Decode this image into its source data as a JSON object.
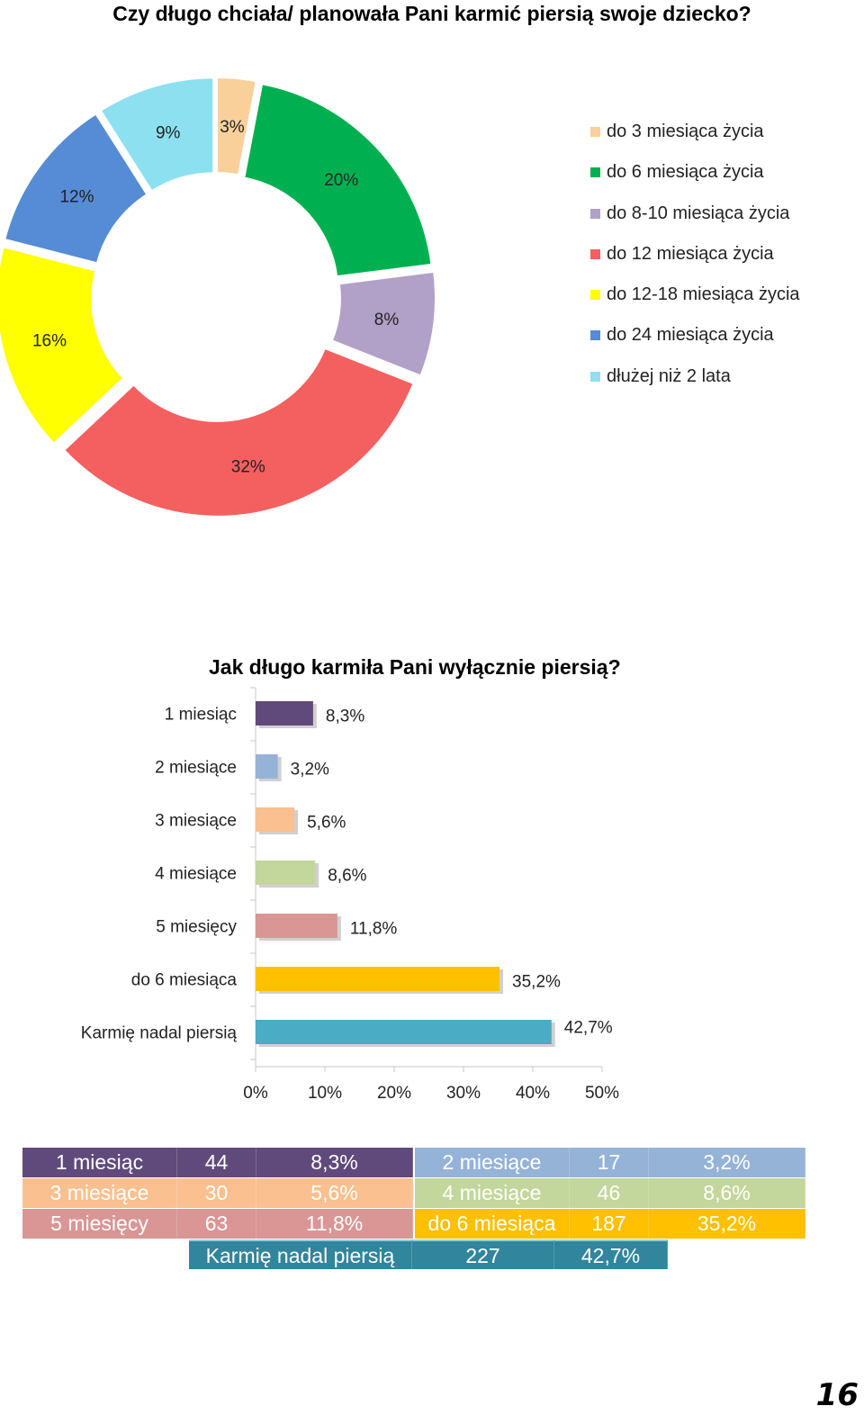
{
  "chart_data": [
    {
      "type": "pie",
      "title": "Czy długo chciała/ planowała Pani karmić piersią swoje dziecko?",
      "legend_position": "right",
      "slices": [
        {
          "label": "do 3 miesiąca życia",
          "value": 3,
          "display": "3%",
          "color": "#FAD09A"
        },
        {
          "label": "do 6 miesiąca życia",
          "value": 20,
          "display": "20%",
          "color": "#00B050"
        },
        {
          "label": "do 8-10 miesiąca życia",
          "value": 8,
          "display": "8%",
          "color": "#B1A0C7"
        },
        {
          "label": "do 12 miesiąca życia",
          "value": 32,
          "display": "32%",
          "color": "#F4605F"
        },
        {
          "label": "do 12-18 miesiąca życia",
          "value": 16,
          "display": "16%",
          "color": "#FFFF00"
        },
        {
          "label": "do 24 miesiąca życia",
          "value": 12,
          "display": "12%",
          "color": "#568BD5"
        },
        {
          "label": "dłużej niż 2 lata",
          "value": 9,
          "display": "9%",
          "color": "#8CE0F0"
        }
      ]
    },
    {
      "type": "bar",
      "orientation": "horizontal",
      "title": "Jak długo karmiła Pani wyłącznie piersią?",
      "categories": [
        "1 miesiąc",
        "2 miesiące",
        "3 miesiące",
        "4 miesiące",
        "5 miesięcy",
        "do 6 miesiąca",
        "Karmię nadal piersią"
      ],
      "values": [
        8.3,
        3.2,
        5.6,
        8.6,
        11.8,
        35.2,
        42.7
      ],
      "data_labels": [
        "8,3%",
        "3,2%",
        "5,6%",
        "8,6%",
        "11,8%",
        "35,2%",
        "42,7%"
      ],
      "colors": [
        "#604A7B",
        "#95B3D7",
        "#FAC090",
        "#C3D69B",
        "#D99694",
        "#FFC000",
        "#4BACC6"
      ],
      "xlim": [
        0,
        50
      ],
      "xticks": [
        "0%",
        "10%",
        "20%",
        "30%",
        "40%",
        "50%"
      ]
    }
  ],
  "table": {
    "rows": [
      [
        {
          "c": [
            "1 miesiąc",
            "44",
            "8,3%"
          ],
          "bg": "#604A7B"
        },
        {
          "c": [
            "2 miesiące",
            "17",
            "3,2%"
          ],
          "bg": "#95B3D7"
        }
      ],
      [
        {
          "c": [
            "3 miesiące",
            "30",
            "5,6%"
          ],
          "bg": "#FAC090"
        },
        {
          "c": [
            "4 miesiące",
            "46",
            "8,6%"
          ],
          "bg": "#C3D69B"
        }
      ],
      [
        {
          "c": [
            "5 miesięcy",
            "63",
            "11,8%"
          ],
          "bg": "#D99694"
        },
        {
          "c": [
            "do 6 miesiąca",
            "187",
            "35,2%"
          ],
          "bg": "#FFC000"
        }
      ],
      [
        {
          "c": [
            "Karmię nadal piersią",
            "227",
            "42,7%"
          ],
          "bg": "#31859C"
        }
      ]
    ]
  },
  "page_number": "16"
}
